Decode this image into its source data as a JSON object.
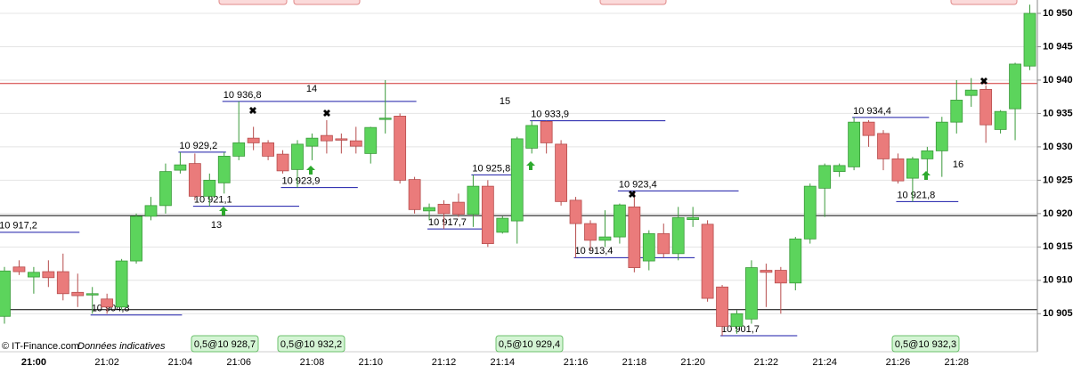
{
  "chart_data": {
    "type": "candlestick",
    "footer": "© IT-Finance.com",
    "footer_note": "Données indicatives",
    "categories": [
      null,
      null,
      "21:00",
      null,
      null,
      null,
      null,
      "21:02",
      null,
      null,
      null,
      null,
      "21:04",
      null,
      null,
      null,
      "21:06",
      null,
      null,
      null,
      null,
      "21:08",
      null,
      null,
      null,
      "21:10",
      null,
      null,
      null,
      null,
      "21:12",
      null,
      null,
      null,
      "21:14",
      null,
      null,
      null,
      null,
      "21:16",
      null,
      null,
      null,
      "21:18",
      null,
      null,
      null,
      "21:20",
      null,
      null,
      null,
      null,
      "21:22",
      null,
      null,
      null,
      "21:24",
      null,
      null,
      null,
      null,
      "21:26",
      null,
      null,
      null,
      "21:28",
      null,
      null,
      null,
      null,
      null
    ],
    "open": [
      10904.6,
      10912,
      10910.5,
      10911.3,
      10911.3,
      10908.2,
      10907.8,
      10907.2,
      10906,
      10912.9,
      10919.6,
      10921.2,
      10926.5,
      10927.5,
      10922.6,
      10924.6,
      10928.6,
      10931.3,
      10930.6,
      10928.9,
      10926.6,
      10930.1,
      10931.7,
      10931.2,
      10930.9,
      10929,
      10934.1,
      10934.6,
      10925.1,
      10920.4,
      10921.4,
      10921.7,
      10919.9,
      10924.1,
      10917.2,
      10918.9,
      10929.8,
      10933.8,
      10930.4,
      10922,
      10918.5,
      10916,
      10916.5,
      10921,
      10912.9,
      10917,
      10914,
      10919.1,
      10918.4,
      10909,
      10903.1,
      10904.2,
      10911.5,
      10911.5,
      10909.6,
      10916.2,
      10923.8,
      10926.3,
      10927,
      10933.7,
      10932,
      10928.2,
      10925.3,
      10928.2,
      10929.4,
      10933.7,
      10937.7,
      10938.6,
      10932.6,
      10935.7,
      10942.1
    ],
    "high": [
      10912,
      10913,
      10912,
      10913,
      10914,
      10911,
      10909,
      10908,
      10913.2,
      10920,
      10922.5,
      10927.5,
      10929.2,
      10929,
      10926,
      10929.2,
      10936.8,
      10933,
      10931,
      10929.5,
      10931,
      10932,
      10934,
      10932,
      10933,
      10933,
      10940,
      10935,
      10925.5,
      10921.5,
      10922,
      10923,
      10925.8,
      10925,
      10919.6,
      10931.5,
      10933.9,
      10933.9,
      10931,
      10922.5,
      10919,
      10920.5,
      10921.5,
      10923.4,
      10917.5,
      10918.5,
      10921,
      10921,
      10919,
      10909.3,
      10905.5,
      10913,
      10912.5,
      10912,
      10916.5,
      10924.5,
      10927.5,
      10927.5,
      10934.4,
      10934,
      10932.5,
      10929,
      10928.5,
      10930,
      10934.5,
      10940,
      10940.3,
      10939.2,
      10935.5,
      10942.6,
      10951.3
    ],
    "low": [
      10903.5,
      10910.8,
      10908,
      10909,
      10907,
      10906,
      10905,
      10905,
      10905.5,
      10912.5,
      10919,
      10920,
      10926,
      10922,
      10921.1,
      10923,
      10928,
      10929.5,
      10928,
      10926,
      10923.9,
      10928,
      10929,
      10929,
      10929,
      10927.5,
      10932,
      10924.5,
      10920,
      10919,
      10917.7,
      10919.5,
      10918,
      10915,
      10917,
      10915.5,
      10929,
      10929,
      10921.2,
      10913.4,
      10914.5,
      10915,
      10915.5,
      10911.2,
      10911.5,
      10913.4,
      10913,
      10918,
      10906.8,
      10901.7,
      10902,
      10903.5,
      10906,
      10905,
      10908.5,
      10915.5,
      10919.5,
      10925.5,
      10926.5,
      10930,
      10926.5,
      10924.5,
      10921.8,
      10926,
      10925.5,
      10932,
      10936,
      10930.6,
      10932,
      10931,
      10941.5
    ],
    "close": [
      10911.4,
      10911.3,
      10911.2,
      10910.4,
      10908,
      10907.7,
      10908,
      10906,
      10912.9,
      10919.6,
      10921.2,
      10926.3,
      10927.3,
      10922.6,
      10925,
      10928.6,
      10930.6,
      10930.6,
      10928.6,
      10926.4,
      10930.4,
      10931.3,
      10930.9,
      10931,
      10930.1,
      10932.9,
      10934.3,
      10925,
      10920.6,
      10920.9,
      10920,
      10919.9,
      10924.1,
      10915.5,
      10919.3,
      10931.2,
      10933.2,
      10930.6,
      10921.8,
      10918.5,
      10916,
      10916.5,
      10921.3,
      10911.9,
      10917,
      10914,
      10919.4,
      10919.4,
      10907.3,
      10903.1,
      10905,
      10911.9,
      10911.2,
      10909.6,
      10916.2,
      10924.1,
      10927.2,
      10927.2,
      10933.7,
      10931.7,
      10928.2,
      10924.9,
      10928.2,
      10929.4,
      10933.7,
      10937,
      10938.5,
      10933.3,
      10935.3,
      10942.4,
      10950
    ],
    "up_color": "#5cd45c",
    "down_color": "#ea7b7b",
    "ylim": [
      10899.3,
      10952
    ],
    "yticks": [
      {
        "value": 10905,
        "label": "10 905"
      },
      {
        "value": 10910,
        "label": "10 910"
      },
      {
        "value": 10915,
        "label": "10 915"
      },
      {
        "value": 10920,
        "label": "10 920"
      },
      {
        "value": 10925,
        "label": "10 925"
      },
      {
        "value": 10930,
        "label": "10 930"
      },
      {
        "value": 10935,
        "label": "10 935"
      },
      {
        "value": 10940,
        "label": "10 940"
      },
      {
        "value": 10945,
        "label": "10 945"
      },
      {
        "value": 10950,
        "label": "10 950"
      }
    ],
    "grid": true,
    "hlines": [
      {
        "value": 10939.5,
        "color": "#d03030"
      },
      {
        "value": 10919.7,
        "color": "#000000"
      },
      {
        "value": 10905.6,
        "color": "#000000"
      }
    ],
    "levels": [
      {
        "value": 10917.2,
        "label": "10 917,2"
      },
      {
        "value": 10904.8,
        "label": "10 904,8"
      },
      {
        "value": 10921.1,
        "label": "10 921,1"
      },
      {
        "value": 10929.2,
        "label": "10 929,2"
      },
      {
        "value": 10936.8,
        "label": "10 936,8"
      },
      {
        "value": 10923.9,
        "label": "10 923,9"
      },
      {
        "value": 10917.7,
        "label": "10 917,7"
      },
      {
        "value": 10925.8,
        "label": "10 925,8"
      },
      {
        "value": 10933.9,
        "label": "10 933,9"
      },
      {
        "value": 10913.4,
        "label": "10 913,4"
      },
      {
        "value": 10923.4,
        "label": "10 923,4"
      },
      {
        "value": 10901.7,
        "label": "10 901,7"
      },
      {
        "value": 10934.4,
        "label": "10 934,4"
      },
      {
        "value": 10921.8,
        "label": "10 921,8"
      }
    ],
    "annotations": [
      "13",
      "14",
      "15",
      "16"
    ],
    "orders": [
      "0,5@10 928,7",
      "0,5@10 932,2",
      "0,5@10 929,4",
      "0,5@10 932,3"
    ]
  }
}
